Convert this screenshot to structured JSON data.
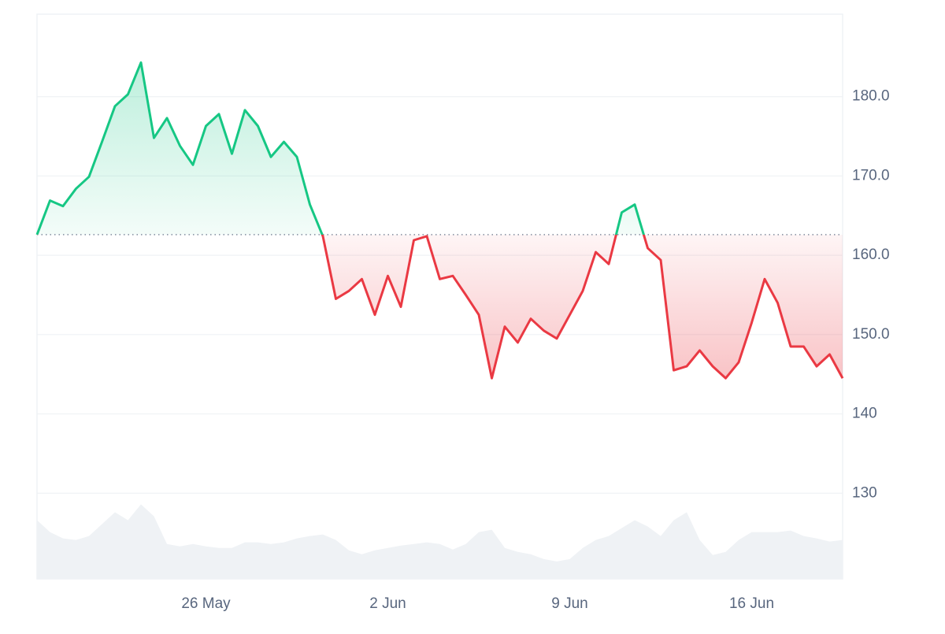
{
  "chart_data": {
    "type": "line",
    "categories": [
      null,
      null,
      null,
      null,
      null,
      null,
      null,
      null,
      null,
      null,
      null,
      null,
      null,
      "26 May",
      null,
      null,
      null,
      null,
      null,
      null,
      null,
      null,
      null,
      null,
      null,
      null,
      null,
      "2 Jun",
      null,
      null,
      null,
      null,
      null,
      null,
      null,
      null,
      null,
      null,
      null,
      null,
      null,
      "9 Jun",
      null,
      null,
      null,
      null,
      null,
      null,
      null,
      null,
      null,
      null,
      null,
      null,
      null,
      "16 Jun",
      null,
      null,
      null,
      null,
      null,
      null,
      null
    ],
    "values": [
      162.6,
      166.9,
      166.2,
      168.4,
      169.9,
      174.3,
      178.8,
      180.3,
      184.3,
      174.8,
      177.3,
      173.8,
      171.4,
      176.3,
      177.8,
      172.8,
      178.3,
      176.3,
      172.4,
      174.3,
      172.4,
      166.4,
      162.4,
      154.5,
      155.5,
      157.0,
      152.5,
      157.4,
      153.5,
      161.9,
      162.4,
      157.0,
      157.4,
      155.0,
      152.5,
      144.5,
      151.0,
      149.0,
      152.0,
      150.5,
      149.5,
      152.5,
      155.5,
      160.4,
      158.9,
      165.4,
      166.4,
      160.9,
      159.4,
      145.5,
      146.0,
      148.0,
      146.0,
      144.5,
      146.5,
      151.5,
      157.0,
      154.0,
      148.5,
      148.5,
      146.0,
      147.5,
      144.5
    ],
    "volume": [
      126.6,
      125.1,
      124.3,
      124.1,
      124.6,
      126.1,
      127.6,
      126.6,
      128.6,
      127.1,
      123.6,
      123.3,
      123.6,
      123.3,
      123.1,
      123.1,
      123.8,
      123.8,
      123.6,
      123.8,
      124.3,
      124.6,
      124.8,
      124.1,
      122.8,
      122.3,
      122.8,
      123.1,
      123.4,
      123.6,
      123.8,
      123.6,
      122.9,
      123.6,
      125.1,
      125.4,
      123.1,
      122.6,
      122.3,
      121.7,
      121.4,
      121.7,
      123.1,
      124.1,
      124.6,
      125.6,
      126.6,
      125.8,
      124.6,
      126.6,
      127.6,
      124.1,
      122.2,
      122.6,
      124.1,
      125.1,
      125.1,
      125.1,
      125.3,
      124.6,
      124.3,
      123.9,
      124.1
    ],
    "baseline": 162.6,
    "ylim": [
      119.2,
      190.4
    ],
    "yticks": [
      130,
      140,
      {
        "value": 150,
        "label": "150.0"
      },
      {
        "value": 160,
        "label": "160.0"
      },
      {
        "value": 170,
        "label": "170.0"
      },
      {
        "value": 180,
        "label": "180.0"
      }
    ],
    "color_up": "#16c784",
    "color_down": "#ea3943",
    "volume_color": "#eff2f5",
    "grid": true
  }
}
